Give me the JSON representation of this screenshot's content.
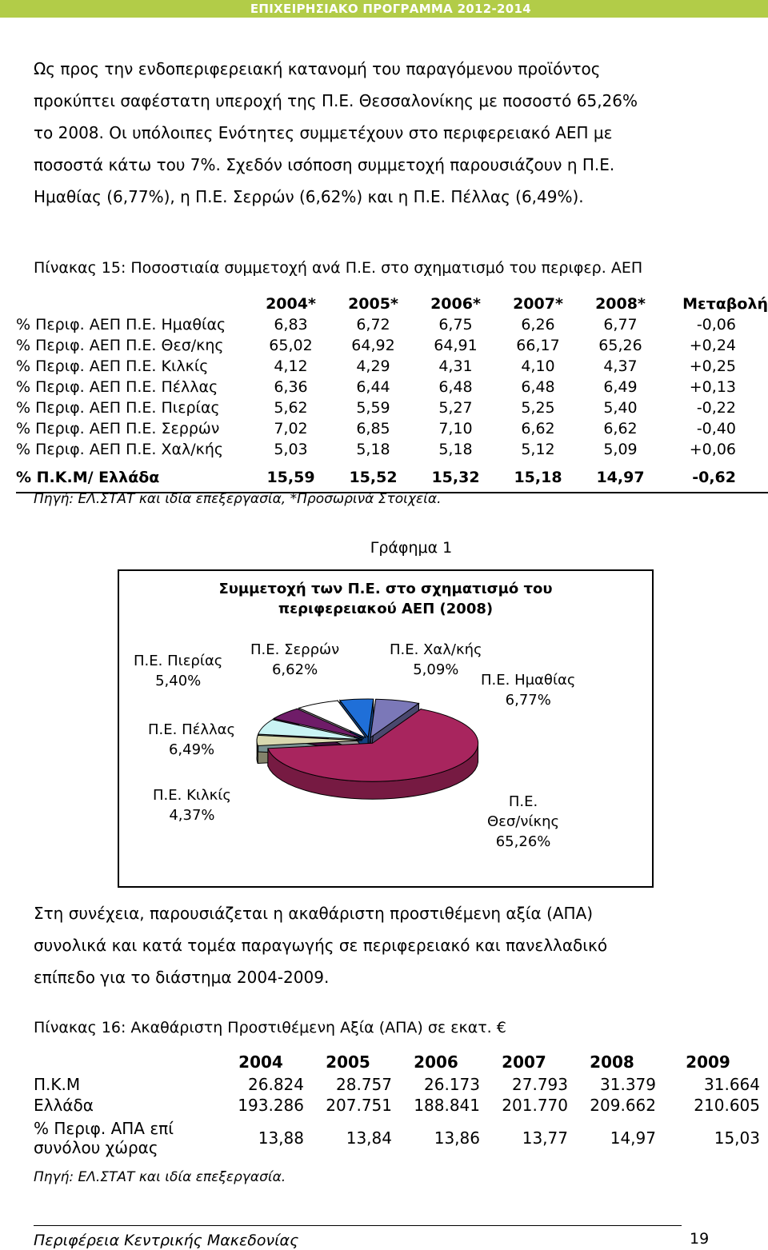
{
  "header": {
    "title": "ΕΠΙΧΕΙΡΗΣΙΑΚΟ ΠΡΟΓΡΑΜΜΑ 2012-2014"
  },
  "intro_lines": [
    "Ως προς την ενδοπεριφερειακή κατανομή του παραγόμενου προϊόντος",
    "προκύπτει σαφέστατη υπεροχή της Π.Ε. Θεσσαλονίκης με ποσοστό 65,26%",
    "το 2008. Οι υπόλοιπες Ενότητες συμμετέχουν στο περιφερειακό ΑΕΠ με",
    "ποσοστά κάτω του 7%. Σχεδόν ισόποση συμμετοχή παρουσιάζουν η Π.Ε.",
    "Ημαθίας (6,77%), η Π.Ε. Σερρών (6,62%) και η Π.Ε. Πέλλας (6,49%)."
  ],
  "table15": {
    "caption": "Πίνακας 15: Ποσοστιαία συμμετοχή ανά Π.Ε. στο σχηματισμό του περιφερ. ΑΕΠ",
    "columns": [
      "2004*",
      "2005*",
      "2006*",
      "2007*",
      "2008*",
      "Μεταβολή"
    ],
    "rows": [
      {
        "label": "% Περιφ. ΑΕΠ Π.Ε. Ημαθίας",
        "values": [
          "6,83",
          "6,72",
          "6,75",
          "6,26",
          "6,77",
          "-0,06"
        ]
      },
      {
        "label": "% Περιφ. ΑΕΠ Π.Ε. Θεσ/κης",
        "values": [
          "65,02",
          "64,92",
          "64,91",
          "66,17",
          "65,26",
          "+0,24"
        ]
      },
      {
        "label": "% Περιφ. ΑΕΠ Π.Ε. Κιλκίς",
        "values": [
          "4,12",
          "4,29",
          "4,31",
          "4,10",
          "4,37",
          "+0,25"
        ]
      },
      {
        "label": "% Περιφ. ΑΕΠ Π.Ε. Πέλλας",
        "values": [
          "6,36",
          "6,44",
          "6,48",
          "6,48",
          "6,49",
          "+0,13"
        ]
      },
      {
        "label": "% Περιφ. ΑΕΠ Π.Ε. Πιερίας",
        "values": [
          "5,62",
          "5,59",
          "5,27",
          "5,25",
          "5,40",
          "-0,22"
        ]
      },
      {
        "label": "% Περιφ. ΑΕΠ Π.Ε. Σερρών",
        "values": [
          "7,02",
          "6,85",
          "7,10",
          "6,62",
          "6,62",
          "-0,40"
        ]
      },
      {
        "label": "% Περιφ. ΑΕΠ Π.Ε. Χαλ/κής",
        "values": [
          "5,03",
          "5,18",
          "5,18",
          "5,12",
          "5,09",
          "+0,06"
        ]
      }
    ],
    "total": {
      "label": "% Π.Κ.Μ/ Ελλάδα",
      "values": [
        "15,59",
        "15,52",
        "15,32",
        "15,18",
        "14,97",
        "-0,62"
      ]
    },
    "source": "Πηγή: ΕΛ.ΣΤΑΤ και ιδία επεξεργασία, *Προσωρινά Στοιχεία."
  },
  "graph_caption": "Γράφημα 1",
  "chart_data": {
    "type": "pie",
    "title": "Συμμετοχή των Π.Ε. στο σχηματισμό του περιφερειακού ΑΕΠ (2008)",
    "title_lines": [
      "Συμμετοχή των Π.Ε. στο σχηματισμό του",
      "περιφερειακού ΑΕΠ (2008)"
    ],
    "slices": [
      {
        "name": "Π.Ε. Ημαθίας",
        "value": 6.77,
        "label": "6,77%",
        "color": "#7b78b8"
      },
      {
        "name": "Π.Ε. Θεσ/νίκης",
        "value": 65.26,
        "label": "65,26%",
        "color": "#a8255e"
      },
      {
        "name": "Π.Ε. Κιλκίς",
        "value": 4.37,
        "label": "4,37%",
        "color": "#d9d9b0"
      },
      {
        "name": "Π.Ε. Πέλλας",
        "value": 6.49,
        "label": "6,49%",
        "color": "#c9f3f3"
      },
      {
        "name": "Π.Ε. Πιερίας",
        "value": 5.4,
        "label": "5,40%",
        "color": "#6f1c68"
      },
      {
        "name": "Π.Ε. Σερρών",
        "value": 6.62,
        "label": "6,62%",
        "color": "#ffffff"
      },
      {
        "name": "Π.Ε. Χαλ/κής",
        "value": 5.09,
        "label": "5,09%",
        "color": "#1f6fd8"
      }
    ],
    "exploded": true,
    "three_d": true
  },
  "pie_labels": {
    "pieria": [
      "Π.Ε. Πιερίας",
      "5,40%"
    ],
    "serres": [
      "Π.Ε. Σερρών",
      "6,62%"
    ],
    "chalk": [
      "Π.Ε. Χαλ/κής",
      "5,09%"
    ],
    "imathia": [
      "Π.Ε. Ημαθίας",
      "6,77%"
    ],
    "pella": [
      "Π.Ε. Πέλλας",
      "6,49%"
    ],
    "kilkis": [
      "Π.Ε. Κιλκίς",
      "4,37%"
    ],
    "thess": [
      "Π.Ε.",
      "Θεσ/νίκης",
      "65,26%"
    ]
  },
  "second_para": [
    "Στη συνέχεια, παρουσιάζεται η ακαθάριστη προστιθέμενη αξία (ΑΠΑ)",
    "συνολικά και κατά τομέα παραγωγής σε περιφερειακό και πανελλαδικό",
    "επίπεδο για το διάστημα 2004-2009."
  ],
  "table16": {
    "caption": "Πίνακας 16: Ακαθάριστη Προστιθέμενη Αξία (ΑΠΑ) σε εκατ. €",
    "columns": [
      "2004",
      "2005",
      "2006",
      "2007",
      "2008",
      "2009"
    ],
    "rows": [
      {
        "label": "Π.Κ.Μ",
        "values": [
          "26.824",
          "28.757",
          "26.173",
          "27.793",
          "31.379",
          "31.664"
        ]
      },
      {
        "label": "Ελλάδα",
        "values": [
          "193.286",
          "207.751",
          "188.841",
          "201.770",
          "209.662",
          "210.605"
        ]
      }
    ],
    "pct_row": {
      "label_lines": [
        "% Περιφ. ΑΠΑ επί",
        "συνόλου χώρας"
      ],
      "values": [
        "13,88",
        "13,84",
        "13,86",
        "13,77",
        "14,97",
        "15,03"
      ]
    },
    "source": "Πηγή: ΕΛ.ΣΤΑΤ και ιδία επεξεργασία."
  },
  "footer": {
    "left": "Περιφέρεια Κεντρικής Μακεδονίας",
    "page": "19"
  }
}
